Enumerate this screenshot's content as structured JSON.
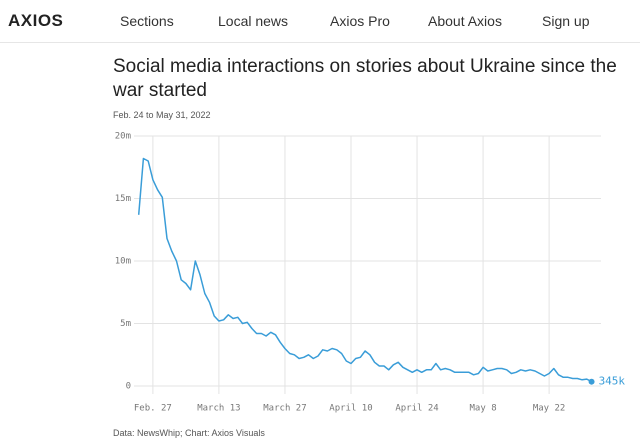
{
  "header": {
    "logo": "AXIOS",
    "nav": [
      "Sections",
      "Local news",
      "Axios Pro",
      "About Axios",
      "Sign up"
    ]
  },
  "chart_data": {
    "type": "line",
    "title": "Social media interactions on stories about Ukraine since the war started",
    "subtitle": "Feb. 24 to May 31, 2022",
    "source": "Data: NewsWhip; Chart: Axios Visuals",
    "color": "#3a9dd8",
    "x": [
      "2022-02-24",
      "2022-02-25",
      "2022-02-26",
      "2022-02-27",
      "2022-02-28",
      "2022-03-01",
      "2022-03-02",
      "2022-03-03",
      "2022-03-04",
      "2022-03-05",
      "2022-03-06",
      "2022-03-07",
      "2022-03-08",
      "2022-03-09",
      "2022-03-10",
      "2022-03-11",
      "2022-03-12",
      "2022-03-13",
      "2022-03-14",
      "2022-03-15",
      "2022-03-16",
      "2022-03-17",
      "2022-03-18",
      "2022-03-19",
      "2022-03-20",
      "2022-03-21",
      "2022-03-22",
      "2022-03-23",
      "2022-03-24",
      "2022-03-25",
      "2022-03-26",
      "2022-03-27",
      "2022-03-28",
      "2022-03-29",
      "2022-03-30",
      "2022-03-31",
      "2022-04-01",
      "2022-04-02",
      "2022-04-03",
      "2022-04-04",
      "2022-04-05",
      "2022-04-06",
      "2022-04-07",
      "2022-04-08",
      "2022-04-09",
      "2022-04-10",
      "2022-04-11",
      "2022-04-12",
      "2022-04-13",
      "2022-04-14",
      "2022-04-15",
      "2022-04-16",
      "2022-04-17",
      "2022-04-18",
      "2022-04-19",
      "2022-04-20",
      "2022-04-21",
      "2022-04-22",
      "2022-04-23",
      "2022-04-24",
      "2022-04-25",
      "2022-04-26",
      "2022-04-27",
      "2022-04-28",
      "2022-04-29",
      "2022-04-30",
      "2022-05-01",
      "2022-05-02",
      "2022-05-03",
      "2022-05-04",
      "2022-05-05",
      "2022-05-06",
      "2022-05-07",
      "2022-05-08",
      "2022-05-09",
      "2022-05-10",
      "2022-05-11",
      "2022-05-12",
      "2022-05-13",
      "2022-05-14",
      "2022-05-15",
      "2022-05-16",
      "2022-05-17",
      "2022-05-18",
      "2022-05-19",
      "2022-05-20",
      "2022-05-21",
      "2022-05-22",
      "2022-05-23",
      "2022-05-24",
      "2022-05-25",
      "2022-05-26",
      "2022-05-27",
      "2022-05-28",
      "2022-05-29",
      "2022-05-30",
      "2022-05-31"
    ],
    "values": [
      13700000,
      18200000,
      18000000,
      16500000,
      15700000,
      15100000,
      11800000,
      10800000,
      10000000,
      8500000,
      8200000,
      7700000,
      10000000,
      8900000,
      7400000,
      6700000,
      5600000,
      5200000,
      5300000,
      5700000,
      5400000,
      5500000,
      5000000,
      5100000,
      4600000,
      4200000,
      4200000,
      4000000,
      4300000,
      4100000,
      3500000,
      3000000,
      2600000,
      2500000,
      2200000,
      2300000,
      2500000,
      2200000,
      2400000,
      2900000,
      2800000,
      3000000,
      2900000,
      2600000,
      2000000,
      1800000,
      2200000,
      2300000,
      2800000,
      2500000,
      1900000,
      1600000,
      1600000,
      1300000,
      1700000,
      1900000,
      1500000,
      1300000,
      1100000,
      1300000,
      1100000,
      1300000,
      1300000,
      1800000,
      1300000,
      1400000,
      1300000,
      1100000,
      1100000,
      1100000,
      1100000,
      900000,
      1000000,
      1500000,
      1200000,
      1300000,
      1400000,
      1400000,
      1300000,
      1000000,
      1100000,
      1300000,
      1200000,
      1300000,
      1200000,
      1000000,
      800000,
      1000000,
      1400000,
      900000,
      700000,
      700000,
      600000,
      600000,
      500000,
      550000,
      345000
    ],
    "value_labels": [
      null,
      null,
      null,
      null,
      null,
      null,
      null,
      null,
      null,
      null,
      null,
      null,
      null,
      null,
      null,
      null,
      null,
      null,
      null,
      null,
      null,
      null,
      null,
      null,
      null,
      null,
      null,
      null,
      null,
      null,
      null,
      null,
      null,
      null,
      null,
      null,
      null,
      null,
      null,
      null,
      null,
      null,
      null,
      null,
      null,
      null,
      null,
      null,
      null,
      null,
      null,
      null,
      null,
      null,
      null,
      null,
      null,
      null,
      null,
      null,
      null,
      null,
      null,
      null,
      null,
      null,
      null,
      null,
      null,
      null,
      null,
      null,
      null,
      null,
      null,
      null,
      null,
      null,
      null,
      null,
      null,
      null,
      null,
      null,
      null,
      null,
      null,
      null,
      null,
      null,
      null,
      null,
      null,
      null,
      null,
      null,
      "345k"
    ],
    "xlim": [
      "2022-02-23",
      "2022-06-02"
    ],
    "xticks": [
      {
        "value": "2022-02-27",
        "label": "Feb. 27"
      },
      {
        "value": "2022-03-13",
        "label": "March 13"
      },
      {
        "value": "2022-03-27",
        "label": "March 27"
      },
      {
        "value": "2022-04-10",
        "label": "April 10"
      },
      {
        "value": "2022-04-24",
        "label": "April 24"
      },
      {
        "value": "2022-05-08",
        "label": "May 8"
      },
      {
        "value": "2022-05-22",
        "label": "May 22"
      }
    ],
    "ylim": [
      0,
      20000000
    ],
    "yticks": [
      0,
      {
        "value": 5000000,
        "label": "5m"
      },
      {
        "value": 10000000,
        "label": "10m"
      },
      {
        "value": 15000000,
        "label": "15m"
      },
      {
        "value": 20000000,
        "label": "20m"
      }
    ],
    "grid": true
  }
}
